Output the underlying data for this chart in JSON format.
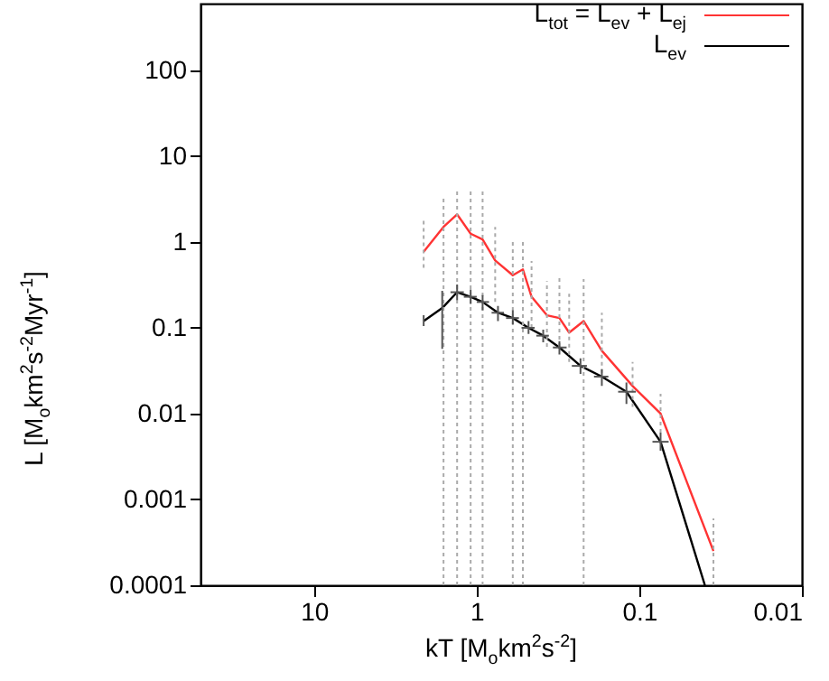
{
  "chart_data": {
    "type": "line",
    "xlabel": "kT [M$_{o}$km$^{2}$s$^{-2}$]",
    "ylabel": "L [M$_{o}$km$^{2}$s$^{-2}$Myr$^{-1}$]",
    "log": "xy",
    "xlim": [
      50,
      0.01
    ],
    "xticks": [
      10,
      1,
      0.1,
      0.01
    ],
    "ylim": [
      0.0001,
      600
    ],
    "yticks": [
      0.0001,
      0.001,
      0.01,
      0.1,
      1,
      10,
      100
    ],
    "legend": "top right",
    "grid": false,
    "marker": "none",
    "series": [
      {
        "name": "L$_{tot}$ = L$_{ev}$ + L$_{ej}$",
        "color": "#ff3333",
        "x": [
          2.12,
          1.6,
          1.32,
          1.09,
          0.92,
          0.77,
          0.6,
          0.52,
          0.46,
          0.37,
          0.31,
          0.27,
          0.22,
          0.17,
          0.11,
          0.074,
          0.035
        ],
        "values": [
          0.77,
          1.5,
          2.1,
          1.25,
          1.07,
          0.61,
          0.41,
          0.48,
          0.23,
          0.14,
          0.13,
          0.088,
          0.12,
          0.054,
          0.021,
          0.01,
          0.00025
        ],
        "errors": [
          [
            0.5,
            1.9
          ],
          [
            0.0001,
            3.3
          ],
          [
            0.0001,
            4.2
          ],
          [
            0.0001,
            4
          ],
          [
            0.0001,
            4
          ],
          [
            0.2,
            1.5
          ],
          [
            0.0001,
            1.1
          ],
          [
            0.0001,
            1.1
          ],
          [
            0.1,
            0.6
          ],
          [
            0.06,
            0.35
          ],
          [
            0.06,
            0.4
          ],
          [
            0.04,
            0.25
          ],
          [
            0.0001,
            0.37
          ],
          [
            0.03,
            0.15
          ],
          [
            0.012,
            0.04
          ],
          [
            0.006,
            0.017
          ],
          [
            0.0001,
            0.0006
          ]
        ]
      },
      {
        "name": "L$_{ev}$",
        "color": "#000000",
        "x": [
          2.12,
          1.63,
          1.32,
          1.09,
          0.92,
          0.74,
          0.6,
          0.48,
          0.39,
          0.31,
          0.23,
          0.17,
          0.12,
          0.074,
          0.0395
        ],
        "values": [
          0.12,
          0.17,
          0.26,
          0.23,
          0.2,
          0.15,
          0.13,
          0.1,
          0.081,
          0.059,
          0.036,
          0.027,
          0.018,
          0.0047,
          0.0001
        ],
        "errors": [
          [
            0.105,
            0.14
          ],
          [
            0.057,
            0.27
          ],
          [
            0.21,
            0.32
          ],
          [
            0.19,
            0.28
          ],
          [
            0.16,
            0.24
          ],
          [
            0.12,
            0.18
          ],
          [
            0.11,
            0.16
          ],
          [
            0.085,
            0.12
          ],
          [
            0.068,
            0.095
          ],
          [
            0.049,
            0.07
          ],
          [
            0.029,
            0.044
          ],
          [
            0.021,
            0.033
          ],
          [
            0.013,
            0.023
          ],
          [
            0.0037,
            0.006
          ],
          null
        ],
        "xerrors": [
          null,
          null,
          [
            1.2,
            1.45
          ],
          [
            1.0,
            1.2
          ],
          [
            0.84,
            1.0
          ],
          [
            0.68,
            0.81
          ],
          [
            0.55,
            0.66
          ],
          [
            0.44,
            0.53
          ],
          [
            0.36,
            0.43
          ],
          [
            0.28,
            0.34
          ],
          [
            0.21,
            0.26
          ],
          [
            0.155,
            0.19
          ],
          [
            0.105,
            0.135
          ],
          [
            0.066,
            0.083
          ],
          null
        ]
      }
    ]
  }
}
